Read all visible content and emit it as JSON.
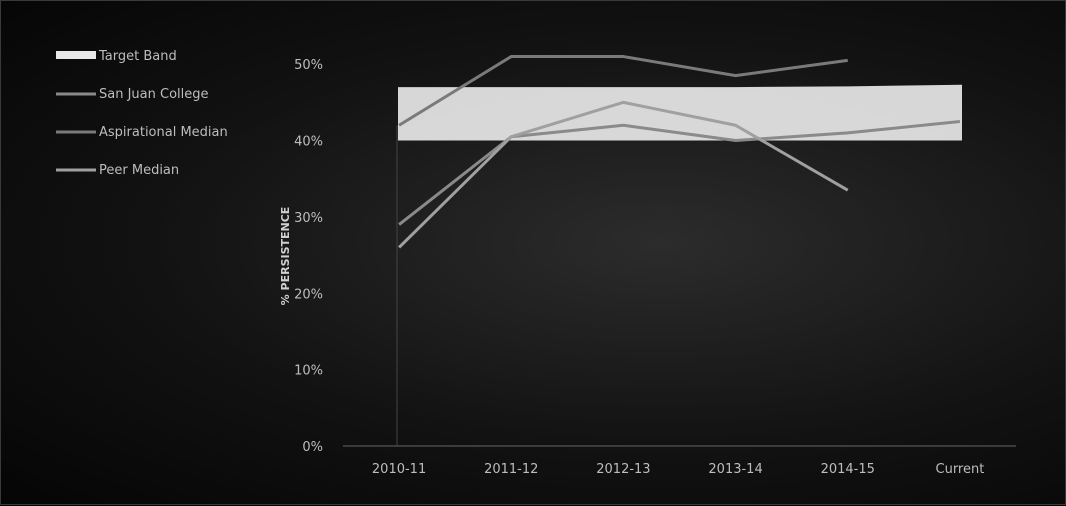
{
  "chart_data": {
    "type": "line",
    "ylabel": "% PERSISTENCE",
    "categories": [
      "2010-11",
      "2011-12",
      "2012-13",
      "2013-14",
      "2014-15",
      "Current"
    ],
    "yticks": [
      "0%",
      "10%",
      "20%",
      "30%",
      "40%",
      "50%"
    ],
    "ylim": [
      0,
      55
    ],
    "legend_position": "top-left",
    "band": {
      "name": "Target Band",
      "low": 40,
      "high": [
        47,
        47,
        47,
        47,
        47.1,
        47.3
      ],
      "color": "#e8e8e8"
    },
    "series": [
      {
        "name": "San Juan College",
        "values": [
          29,
          40.5,
          42,
          40,
          41,
          42.5
        ],
        "color": "#8a8a8a"
      },
      {
        "name": "Aspirational Median",
        "values": [
          42,
          51,
          51,
          48.5,
          50.5,
          null
        ],
        "color": "#7a7a7a"
      },
      {
        "name": "Peer Median",
        "values": [
          26,
          40.5,
          45,
          42,
          33.5,
          null
        ],
        "color": "#a0a0a0"
      }
    ],
    "grid": false
  }
}
